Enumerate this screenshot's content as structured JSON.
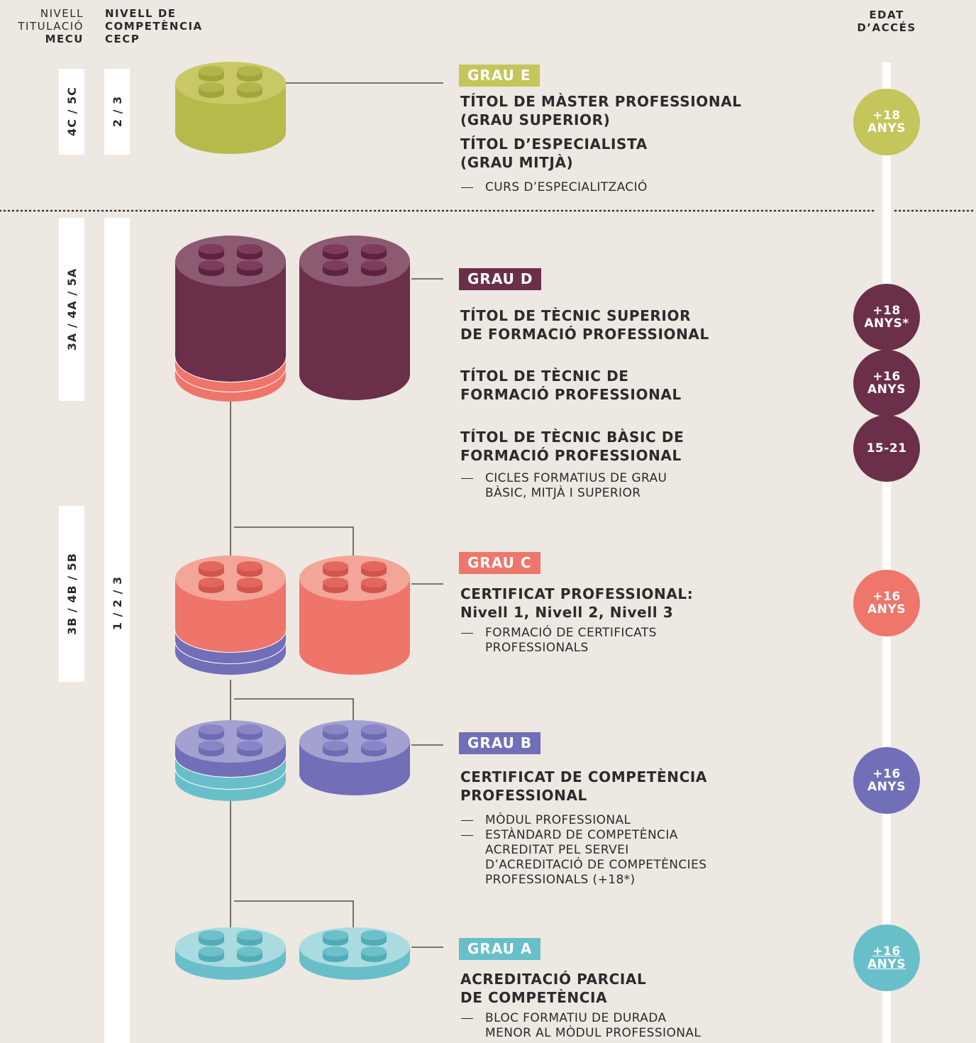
{
  "header": {
    "mecu_label": "NIVELL\nTITULACIÓ",
    "mecu_code": "MECU",
    "cecp_label": "NIVELL DE\nCOMPETÈNCIA\nCECP",
    "age_label": "EDAT\nD’ACCÉS"
  },
  "mecu_levels": [
    "4C / 5C",
    "3A / 4A / 5A",
    "3B / 4B / 5B"
  ],
  "cecp_levels": [
    "2 / 3",
    "1 / 2 / 3"
  ],
  "grades": [
    {
      "badge": "GRAU E",
      "titles": [
        "TÍTOL DE MÀSTER PROFESSIONAL\n(GRAU SUPERIOR)",
        "TÍTOL D’ESPECIALISTA\n(GRAU MITJÀ)"
      ],
      "items": [
        "CURS D’ESPECIALITZACIÓ"
      ],
      "ages": [
        "+18\nANYS"
      ]
    },
    {
      "badge": "GRAU D",
      "titles": [
        "TÍTOL DE TÈCNIC SUPERIOR\nDE FORMACIÓ PROFESSIONAL",
        "TÍTOL DE TÈCNIC DE\nFORMACIÓ PROFESSIONAL",
        "TÍTOL DE TÈCNIC BÀSIC DE\nFORMACIÓ PROFESSIONAL"
      ],
      "items": [
        "CICLES FORMATIUS DE GRAU\nBÀSIC, MITJÀ I SUPERIOR"
      ],
      "ages": [
        "+18\nANYS*",
        "+16\nANYS",
        "15-21"
      ]
    },
    {
      "badge": "GRAU C",
      "titles": [
        "CERTIFICAT PROFESSIONAL:\nNivell 1, Nivell 2, Nivell 3"
      ],
      "items": [
        "FORMACIÓ DE CERTIFICATS\nPROFESSIONALS"
      ],
      "ages": [
        "+16\nANYS"
      ]
    },
    {
      "badge": "GRAU B",
      "titles": [
        "CERTIFICAT DE COMPETÈNCIA\nPROFESSIONAL"
      ],
      "items": [
        "MÒDUL PROFESSIONAL",
        "ESTÀNDARD DE COMPETÈNCIA\nACREDITAT PEL SERVEI\nD’ACREDITACIÓ DE COMPETÈNCIES\nPROFESSIONALS (+18*)"
      ],
      "ages": [
        "+16\nANYS"
      ]
    },
    {
      "badge": "GRAU A",
      "titles": [
        "ACREDITACIÓ PARCIAL\nDE COMPETÈNCIA"
      ],
      "items": [
        "BLOC FORMATIU DE DURADA\nMENOR AL MÒDUL PROFESSIONAL"
      ],
      "ages": [
        "+16\nANYS"
      ]
    }
  ]
}
